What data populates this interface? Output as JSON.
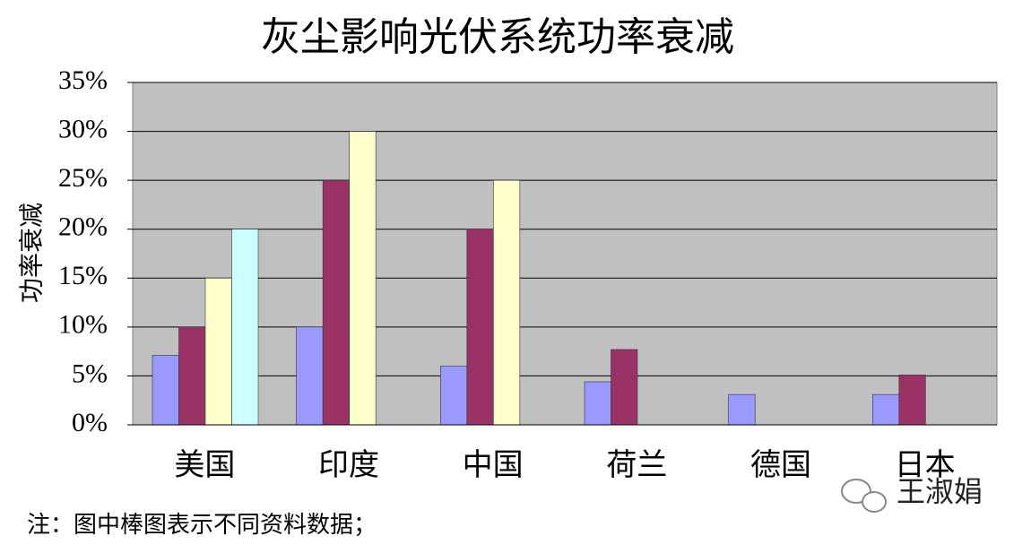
{
  "chart_data": {
    "type": "bar",
    "title": "灰尘影响光伏系统功率衰减",
    "y_label": "功率衰减",
    "categories": [
      "美国",
      "印度",
      "中国",
      "荷兰",
      "德国",
      "日本"
    ],
    "series": [
      {
        "color": "#9999ff",
        "values": [
          7.1,
          10,
          6,
          4.4,
          3.1,
          3.1
        ]
      },
      {
        "color": "#993366",
        "values": [
          10,
          25,
          20,
          7.7,
          null,
          5.1
        ]
      },
      {
        "color": "#ffffcc",
        "values": [
          15,
          30,
          25,
          null,
          null,
          null
        ]
      },
      {
        "color": "#ccffff",
        "values": [
          20,
          null,
          null,
          null,
          null,
          null
        ]
      }
    ],
    "ylim": [
      0,
      35
    ],
    "yticks": [
      {
        "value": 0,
        "label": "0%"
      },
      {
        "value": 5,
        "label": "5%"
      },
      {
        "value": 10,
        "label": "10%"
      },
      {
        "value": 15,
        "label": "15%"
      },
      {
        "value": 20,
        "label": "20%"
      },
      {
        "value": 25,
        "label": "25%"
      },
      {
        "value": 30,
        "label": "30%"
      },
      {
        "value": 35,
        "label": "35%"
      }
    ],
    "grid": true,
    "plot_background": "#c0c0c0",
    "footnote": "注：图中棒图表示不同资料数据；",
    "watermark": "王淑娟"
  }
}
